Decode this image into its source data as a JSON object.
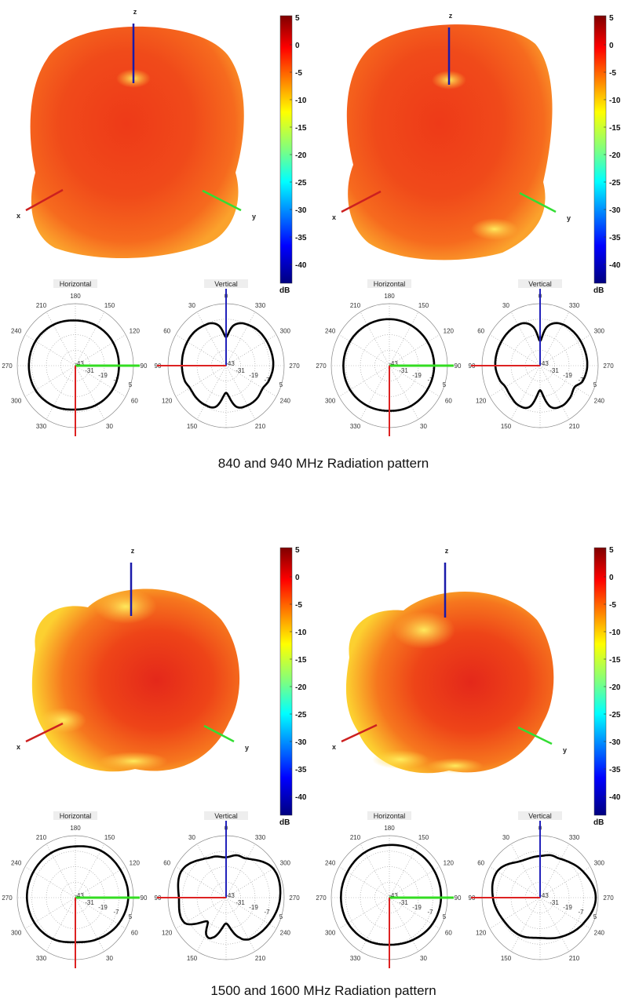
{
  "captions": [
    "840 and 940 MHz Radiation pattern",
    "1500 and 1600 MHz Radiation pattern"
  ],
  "axis_labels": {
    "x": "x",
    "y": "y",
    "z": "z"
  },
  "colorbar": {
    "ticks": [
      "5",
      "0",
      "-5",
      "-10",
      "-15",
      "-20",
      "-25",
      "-30",
      "-35",
      "-40"
    ],
    "unit": "dB",
    "range_db": [
      -43,
      5
    ]
  },
  "polar": {
    "horizontal_title": "Horizontal",
    "vertical_title": "Vertical",
    "ring_labels": [
      "-43",
      "-31",
      "-19",
      "-7",
      "5"
    ],
    "ring_values_db": [
      -43,
      -31,
      -19,
      -7,
      5
    ],
    "horizontal_angle_labels": [
      "180",
      "150",
      "120",
      "90",
      "60",
      "30",
      "330",
      "300",
      "270",
      "240",
      "210"
    ],
    "vertical_angle_labels": [
      "0",
      "330",
      "300",
      "270",
      "240",
      "210",
      "150",
      "120",
      "90",
      "60",
      "30"
    ]
  },
  "chart_data": [
    {
      "type": "polar",
      "title": "Horizontal",
      "unit": "dB",
      "points": [
        [
          0,
          -9
        ],
        [
          30,
          -8
        ],
        [
          60,
          -7
        ],
        [
          90,
          -7
        ],
        [
          120,
          -7
        ],
        [
          150,
          -7.5
        ],
        [
          180,
          -8
        ],
        [
          210,
          -6.5
        ],
        [
          240,
          -5
        ],
        [
          270,
          -4.6
        ],
        [
          300,
          -5
        ],
        [
          330,
          -7
        ]
      ]
    },
    {
      "type": "polar",
      "title": "Vertical",
      "unit": "dB",
      "points": [
        [
          0,
          -21
        ],
        [
          10,
          -12
        ],
        [
          20,
          -8
        ],
        [
          30,
          -7
        ],
        [
          45,
          -6
        ],
        [
          60,
          -6
        ],
        [
          90,
          -6.5
        ],
        [
          110,
          -7
        ],
        [
          120,
          -8.5
        ],
        [
          135,
          -8
        ],
        [
          150,
          -8
        ],
        [
          165,
          -10
        ],
        [
          180,
          -22
        ],
        [
          195,
          -10
        ],
        [
          210,
          -7.5
        ],
        [
          225,
          -7
        ],
        [
          240,
          -8
        ],
        [
          250,
          -6
        ],
        [
          270,
          -4
        ],
        [
          300,
          -4.5
        ],
        [
          315,
          -5
        ],
        [
          330,
          -6.5
        ],
        [
          340,
          -8
        ],
        [
          350,
          -12
        ]
      ]
    },
    {
      "type": "polar",
      "title": "Horizontal",
      "unit": "dB",
      "points": [
        [
          0,
          -8
        ],
        [
          30,
          -7
        ],
        [
          60,
          -6.5
        ],
        [
          90,
          -6
        ],
        [
          120,
          -6.5
        ],
        [
          150,
          -7
        ],
        [
          180,
          -7
        ],
        [
          210,
          -6.5
        ],
        [
          240,
          -5.5
        ],
        [
          270,
          -5
        ],
        [
          300,
          -5.5
        ],
        [
          330,
          -7
        ]
      ]
    },
    {
      "type": "polar",
      "title": "Vertical",
      "unit": "dB",
      "points": [
        [
          0,
          -24
        ],
        [
          10,
          -13
        ],
        [
          20,
          -8
        ],
        [
          30,
          -6.5
        ],
        [
          45,
          -6
        ],
        [
          60,
          -6
        ],
        [
          90,
          -6
        ],
        [
          110,
          -8
        ],
        [
          120,
          -10
        ],
        [
          135,
          -9
        ],
        [
          150,
          -7.5
        ],
        [
          165,
          -10
        ],
        [
          180,
          -24
        ],
        [
          195,
          -10
        ],
        [
          210,
          -7
        ],
        [
          225,
          -8
        ],
        [
          240,
          -10
        ],
        [
          250,
          -6
        ],
        [
          270,
          -4
        ],
        [
          300,
          -4.5
        ],
        [
          315,
          -5
        ],
        [
          330,
          -6
        ],
        [
          340,
          -8
        ],
        [
          350,
          -13
        ]
      ]
    },
    {
      "type": "polar",
      "title": "Horizontal",
      "unit": "dB",
      "points": [
        [
          0,
          -8.5
        ],
        [
          30,
          -6
        ],
        [
          60,
          -2
        ],
        [
          90,
          0.7
        ],
        [
          120,
          0
        ],
        [
          150,
          -1
        ],
        [
          180,
          -3.3
        ],
        [
          210,
          -3
        ],
        [
          240,
          -3
        ],
        [
          270,
          -3
        ],
        [
          300,
          -4
        ],
        [
          330,
          -6
        ]
      ]
    },
    {
      "type": "polar",
      "title": "Vertical",
      "unit": "dB",
      "points": [
        [
          0,
          -11.8
        ],
        [
          15,
          -10
        ],
        [
          30,
          -8
        ],
        [
          60,
          -0.8
        ],
        [
          90,
          -4
        ],
        [
          120,
          -3.6
        ],
        [
          140,
          -19
        ],
        [
          150,
          -10
        ],
        [
          160,
          -10
        ],
        [
          180,
          -23
        ],
        [
          200,
          -10
        ],
        [
          210,
          -5.6
        ],
        [
          240,
          -2.2
        ],
        [
          270,
          1.6
        ],
        [
          300,
          2
        ],
        [
          330,
          -8
        ],
        [
          345,
          -9
        ]
      ]
    },
    {
      "type": "polar",
      "title": "Horizontal",
      "unit": "dB",
      "points": [
        [
          0,
          -6.5
        ],
        [
          30,
          -5
        ],
        [
          60,
          -2
        ],
        [
          90,
          -0.3
        ],
        [
          120,
          -0.5
        ],
        [
          150,
          -1
        ],
        [
          180,
          -2.2
        ],
        [
          210,
          -2.5
        ],
        [
          240,
          -3
        ],
        [
          270,
          -3
        ],
        [
          300,
          -3.5
        ],
        [
          330,
          -5
        ]
      ]
    },
    {
      "type": "polar",
      "title": "Vertical",
      "unit": "dB",
      "points": [
        [
          0,
          -10.8
        ],
        [
          30,
          -10.4
        ],
        [
          60,
          -2.2
        ],
        [
          90,
          -4
        ],
        [
          120,
          -8
        ],
        [
          150,
          -9.4
        ],
        [
          180,
          -11.8
        ],
        [
          210,
          -8
        ],
        [
          240,
          -2.2
        ],
        [
          270,
          3
        ],
        [
          300,
          -2.2
        ],
        [
          330,
          -8.4
        ],
        [
          345,
          -9
        ]
      ]
    }
  ]
}
